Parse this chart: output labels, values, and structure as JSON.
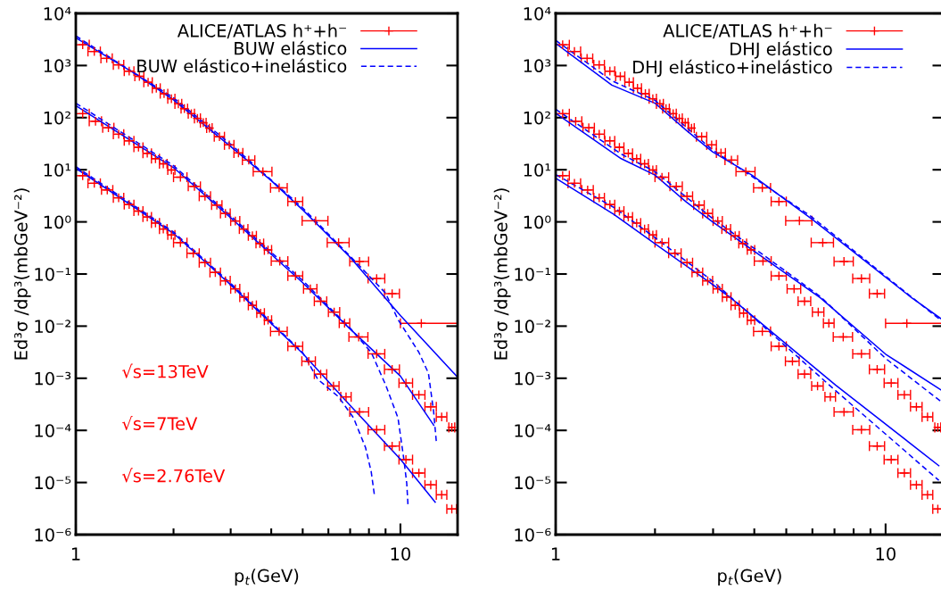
{
  "chart_data": [
    {
      "type": "scatter",
      "xlabel": "p$_{t}$(GeV)",
      "ylabel": "Ed³σ /dp³(mbGeV⁻²)",
      "log": "xy",
      "xlim": [
        1,
        15
      ],
      "ylim": [
        1e-06,
        10000.0
      ],
      "xticks": [
        1,
        {
          "value": 2,
          "label": null
        },
        {
          "value": 3,
          "label": null
        },
        {
          "value": 4,
          "label": null
        },
        {
          "value": 5,
          "label": null
        },
        {
          "value": 6,
          "label": null
        },
        {
          "value": 7,
          "label": null
        },
        {
          "value": 8,
          "label": null
        },
        {
          "value": 9,
          "label": null
        },
        10
      ],
      "yticks": [
        {
          "value": 1e-06,
          "label": "10⁻⁶"
        },
        {
          "value": 1e-05,
          "label": "10⁻⁵"
        },
        {
          "value": 0.0001,
          "label": "10⁻⁴"
        },
        {
          "value": 0.001,
          "label": "10⁻³"
        },
        {
          "value": 0.01,
          "label": "10⁻²"
        },
        {
          "value": 0.1,
          "label": "10⁻¹"
        },
        {
          "value": 1,
          "label": "10⁰"
        },
        {
          "value": 10,
          "label": "10¹"
        },
        {
          "value": 100,
          "label": "10²"
        },
        {
          "value": 1000,
          "label": "10³"
        },
        {
          "value": 10000,
          "label": "10⁴"
        }
      ],
      "legend": "top right",
      "annotations": [
        "√s=13TeV",
        "√s=7TeV",
        "√s=2.76TeV"
      ],
      "series": [
        {
          "name": "ALICE/ATLAS h⁺+h⁻",
          "marker": "cross",
          "color": "#ff0000",
          "x": [
            1.05,
            1.14,
            1.245,
            1.355,
            1.46,
            1.57,
            1.67,
            1.77,
            1.87,
            1.97,
            2.07,
            2.16,
            2.27,
            2.37,
            2.47,
            2.58,
            2.77,
            2.97,
            3.17,
            3.41,
            3.77,
            4.23,
            4.75,
            5.48,
            6.45,
            7.48,
            8.45,
            9.43,
            11.6
          ],
          "values": [
            2500,
            1860,
            1370,
            1030,
            780,
            620,
            477,
            366,
            288,
            230,
            184,
            149,
            119,
            97,
            80,
            63,
            43,
            30,
            21,
            15.3,
            9.2,
            4.5,
            2.46,
            1.05,
            0.4,
            0.174,
            0.082,
            0.042,
            0.0113
          ],
          "xerrors": [
            0.05,
            0.05,
            0.05,
            0.05,
            0.05,
            0.05,
            0.05,
            0.05,
            0.05,
            0.05,
            0.05,
            0.05,
            0.05,
            0.05,
            0.05,
            0.05,
            0.1,
            0.1,
            0.1,
            0.15,
            0.25,
            0.25,
            0.25,
            0.5,
            0.5,
            0.5,
            0.5,
            0.5,
            [
              10,
              15
            ]
          ]
        },
        {
          "marker": "cross",
          "color": "#ff0000",
          "x": [
            1.05,
            1.15,
            1.26,
            1.355,
            1.46,
            1.56,
            1.66,
            1.76,
            1.86,
            1.97,
            2.1,
            2.32,
            2.5,
            2.72,
            2.89,
            3.1,
            3.29,
            3.5,
            3.69,
            3.91,
            4.25,
            4.75,
            5.28,
            5.68,
            6.25,
            6.73,
            7.44,
            8.45,
            9.43,
            10.4,
            11.4,
            12.4,
            13.4,
            14.4
          ],
          "values": [
            119,
            85,
            64,
            48,
            36,
            27,
            20.7,
            16.3,
            13,
            9.9,
            7.2,
            4.8,
            3.1,
            2.1,
            1.45,
            1.04,
            0.73,
            0.54,
            0.385,
            0.29,
            0.177,
            0.092,
            0.052,
            0.03,
            0.0186,
            0.0114,
            0.0062,
            0.00294,
            0.00148,
            0.00081,
            0.00048,
            0.000283,
            0.000181,
            0.000114
          ],
          "xerrors": [
            0.05,
            0.05,
            0.05,
            0.05,
            0.05,
            0.05,
            0.05,
            0.05,
            0.05,
            0.05,
            0.1,
            0.1,
            0.1,
            0.1,
            0.1,
            0.1,
            0.1,
            0.1,
            0.1,
            0.1,
            0.25,
            0.25,
            0.25,
            0.25,
            0.25,
            0.25,
            0.5,
            0.5,
            0.5,
            0.5,
            0.5,
            0.5,
            0.5,
            0.3
          ]
        },
        {
          "marker": "cross",
          "color": "#ff0000",
          "x": [
            1.05,
            1.14,
            1.25,
            1.355,
            1.46,
            1.56,
            1.66,
            1.76,
            1.86,
            1.97,
            2.1,
            2.3,
            2.5,
            2.69,
            2.89,
            3.1,
            3.3,
            3.5,
            3.71,
            3.91,
            4.23,
            4.75,
            5.22,
            5.68,
            6.22,
            6.8,
            7.48,
            8.45,
            9.43,
            10.4,
            11.4,
            12.4,
            13.4,
            14.4
          ],
          "values": [
            7.7,
            5.5,
            4.1,
            2.9,
            2.15,
            1.61,
            1.24,
            0.95,
            0.73,
            0.56,
            0.4,
            0.25,
            0.165,
            0.107,
            0.074,
            0.052,
            0.036,
            0.025,
            0.0178,
            0.013,
            0.0079,
            0.0041,
            0.00212,
            0.0012,
            0.00071,
            0.00044,
            0.000226,
            0.000103,
            5e-05,
            2.75e-05,
            1.52e-05,
            9e-06,
            5.8e-06,
            3.1e-06
          ],
          "xerrors": [
            0.05,
            0.05,
            0.05,
            0.05,
            0.05,
            0.05,
            0.05,
            0.05,
            0.05,
            0.05,
            0.1,
            0.1,
            0.1,
            0.1,
            0.1,
            0.1,
            0.1,
            0.1,
            0.1,
            0.1,
            0.25,
            0.25,
            0.25,
            0.25,
            0.25,
            0.25,
            0.5,
            0.5,
            0.5,
            0.5,
            0.5,
            0.5,
            0.5,
            0.5
          ]
        },
        {
          "name": "BUW elástico",
          "type": "line",
          "line_style": "solid",
          "color": "#0000ff",
          "x": [
            1,
            1.5,
            2,
            3,
            4,
            5,
            7,
            10,
            15
          ],
          "values": [
            3400,
            740,
            220,
            28,
            6.2,
            1.7,
            0.21,
            0.016,
            0.00105
          ]
        },
        {
          "name": "BUW elástico+inelástico",
          "type": "line",
          "line_style": "dashed",
          "color": "#0000ff",
          "x": [
            1,
            2,
            3,
            5,
            7,
            9,
            9.83,
            11.4,
            12.2,
            12.66,
            12.9
          ],
          "values": [
            3700,
            240,
            31,
            1.85,
            0.22,
            0.043,
            0.0134,
            0.00314,
            0.00125,
            0.000226,
            6.1e-05
          ]
        },
        {
          "type": "line",
          "line_style": "solid",
          "color": "#0000ff",
          "x": [
            1,
            2,
            3,
            5,
            7,
            10,
            12.67
          ],
          "values": [
            170,
            11,
            1.2,
            0.068,
            0.0088,
            0.0011,
            0.000125
          ]
        },
        {
          "type": "line",
          "line_style": "dashed",
          "color": "#0000ff",
          "x": [
            1,
            2,
            3,
            5,
            7.02,
            8.13,
            9.01,
            9.83,
            10.25,
            10.46,
            10.56
          ],
          "values": [
            190,
            12,
            1.3,
            0.075,
            0.009,
            0.00314,
            0.00074,
            0.000174,
            2.75e-05,
            9.6e-06,
            3.36e-06
          ]
        },
        {
          "type": "line",
          "line_style": "solid",
          "color": "#0000ff",
          "x": [
            1,
            2,
            3,
            5,
            7,
            10,
            12.8
          ],
          "values": [
            10.7,
            0.6,
            0.062,
            0.003,
            0.0003,
            2.8e-05,
            4.2e-06
          ]
        },
        {
          "type": "line",
          "line_style": "dashed",
          "color": "#0000ff",
          "x": [
            1,
            2,
            3,
            5,
            5.56,
            6.45,
            7.17,
            7.81,
            8.13,
            8.33
          ],
          "values": [
            11.5,
            0.64,
            0.066,
            0.0031,
            0.00096,
            0.00044,
            0.000174,
            4.67e-05,
            1.6e-05,
            5.3e-06
          ]
        }
      ]
    },
    {
      "type": "scatter",
      "xlabel": "p$_{t}$(GeV)",
      "ylabel": "Ed³σ /dp³(mbGeV⁻²)",
      "log": "xy",
      "xlim": [
        1,
        15
      ],
      "ylim": [
        1e-06,
        10000.0
      ],
      "xticks": [
        1,
        {
          "value": 2,
          "label": null
        },
        {
          "value": 3,
          "label": null
        },
        {
          "value": 4,
          "label": null
        },
        {
          "value": 5,
          "label": null
        },
        {
          "value": 6,
          "label": null
        },
        {
          "value": 7,
          "label": null
        },
        {
          "value": 8,
          "label": null
        },
        {
          "value": 9,
          "label": null
        },
        10
      ],
      "yticks": [
        {
          "value": 1e-06,
          "label": "10⁻⁶"
        },
        {
          "value": 1e-05,
          "label": "10⁻⁵"
        },
        {
          "value": 0.0001,
          "label": "10⁻⁴"
        },
        {
          "value": 0.001,
          "label": "10⁻³"
        },
        {
          "value": 0.01,
          "label": "10⁻²"
        },
        {
          "value": 0.1,
          "label": "10⁻¹"
        },
        {
          "value": 1,
          "label": "10⁰"
        },
        {
          "value": 10,
          "label": "10¹"
        },
        {
          "value": 100,
          "label": "10²"
        },
        {
          "value": 1000,
          "label": "10³"
        },
        {
          "value": 10000,
          "label": "10⁴"
        }
      ],
      "legend": "top right",
      "series": [
        {
          "name": "ALICE/ATLAS h⁺+h⁻",
          "marker": "cross",
          "color": "#ff0000",
          "x": [
            1.05,
            1.14,
            1.245,
            1.355,
            1.46,
            1.57,
            1.67,
            1.77,
            1.87,
            1.97,
            2.07,
            2.16,
            2.27,
            2.37,
            2.47,
            2.58,
            2.77,
            2.97,
            3.17,
            3.41,
            3.77,
            4.23,
            4.75,
            5.48,
            6.45,
            7.48,
            8.45,
            9.43,
            11.6
          ],
          "values": [
            2500,
            1860,
            1370,
            1030,
            780,
            620,
            477,
            366,
            288,
            230,
            184,
            149,
            119,
            97,
            80,
            63,
            43,
            30,
            21,
            15.3,
            9.2,
            4.5,
            2.46,
            1.05,
            0.4,
            0.174,
            0.082,
            0.042,
            0.0113
          ],
          "xerrors": [
            0.05,
            0.05,
            0.05,
            0.05,
            0.05,
            0.05,
            0.05,
            0.05,
            0.05,
            0.05,
            0.05,
            0.05,
            0.05,
            0.05,
            0.05,
            0.05,
            0.1,
            0.1,
            0.1,
            0.15,
            0.25,
            0.25,
            0.25,
            0.5,
            0.5,
            0.5,
            0.5,
            0.5,
            [
              10,
              15
            ]
          ]
        },
        {
          "marker": "cross",
          "color": "#ff0000",
          "x": [
            1.05,
            1.15,
            1.26,
            1.355,
            1.46,
            1.56,
            1.66,
            1.76,
            1.86,
            1.97,
            2.1,
            2.32,
            2.5,
            2.72,
            2.89,
            3.1,
            3.29,
            3.5,
            3.69,
            3.91,
            4.25,
            4.75,
            5.28,
            5.68,
            6.25,
            6.73,
            7.44,
            8.45,
            9.43,
            10.4,
            11.4,
            12.4,
            13.4,
            14.4
          ],
          "values": [
            119,
            85,
            64,
            48,
            36,
            27,
            20.7,
            16.3,
            13,
            9.9,
            7.2,
            4.8,
            3.1,
            2.1,
            1.45,
            1.04,
            0.73,
            0.54,
            0.385,
            0.29,
            0.177,
            0.092,
            0.052,
            0.03,
            0.0186,
            0.0114,
            0.0062,
            0.00294,
            0.00148,
            0.00081,
            0.00048,
            0.000283,
            0.000181,
            0.000114
          ],
          "xerrors": [
            0.05,
            0.05,
            0.05,
            0.05,
            0.05,
            0.05,
            0.05,
            0.05,
            0.05,
            0.05,
            0.1,
            0.1,
            0.1,
            0.1,
            0.1,
            0.1,
            0.1,
            0.1,
            0.1,
            0.1,
            0.25,
            0.25,
            0.25,
            0.25,
            0.25,
            0.25,
            0.5,
            0.5,
            0.5,
            0.5,
            0.5,
            0.5,
            0.5,
            0.3
          ]
        },
        {
          "marker": "cross",
          "color": "#ff0000",
          "x": [
            1.05,
            1.14,
            1.25,
            1.355,
            1.46,
            1.56,
            1.66,
            1.76,
            1.86,
            1.97,
            2.1,
            2.3,
            2.5,
            2.69,
            2.89,
            3.1,
            3.3,
            3.5,
            3.71,
            3.91,
            4.23,
            4.75,
            5.22,
            5.68,
            6.22,
            6.8,
            7.48,
            8.45,
            9.43,
            10.4,
            11.4,
            12.4,
            13.4,
            14.4
          ],
          "values": [
            7.7,
            5.5,
            4.1,
            2.9,
            2.15,
            1.61,
            1.24,
            0.95,
            0.73,
            0.56,
            0.4,
            0.25,
            0.165,
            0.107,
            0.074,
            0.052,
            0.036,
            0.025,
            0.0178,
            0.013,
            0.0079,
            0.0041,
            0.00212,
            0.0012,
            0.00071,
            0.00044,
            0.000226,
            0.000103,
            5e-05,
            2.75e-05,
            1.52e-05,
            9e-06,
            5.8e-06,
            3.1e-06
          ],
          "xerrors": [
            0.05,
            0.05,
            0.05,
            0.05,
            0.05,
            0.05,
            0.05,
            0.05,
            0.05,
            0.05,
            0.1,
            0.1,
            0.1,
            0.1,
            0.1,
            0.1,
            0.1,
            0.1,
            0.1,
            0.1,
            0.25,
            0.25,
            0.25,
            0.25,
            0.25,
            0.25,
            0.5,
            0.5,
            0.5,
            0.5,
            0.5,
            0.5,
            0.5,
            0.5
          ]
        },
        {
          "name": "DHJ elástico",
          "type": "line",
          "line_style": "solid",
          "color": "#0000ff",
          "x": [
            1,
            1.48,
            2,
            2.49,
            2.99,
            3.93,
            5.95,
            12,
            14.7
          ],
          "values": [
            2660,
            420,
            189,
            57,
            22,
            7.9,
            1.16,
            0.035,
            0.014
          ]
        },
        {
          "name": "DHJ elástico+inelástico",
          "type": "line",
          "line_style": "dashed",
          "color": "#0000ff",
          "x": [
            1,
            1.48,
            2,
            2.99,
            5.95,
            12,
            14.7
          ],
          "values": [
            3040,
            510,
            215,
            24,
            1.27,
            0.036,
            0.013
          ]
        },
        {
          "type": "line",
          "line_style": "solid",
          "color": "#0000ff",
          "x": [
            1,
            1.58,
            2,
            2.49,
            2.99,
            4.45,
            6.34,
            10,
            14.7
          ],
          "values": [
            122,
            16.3,
            7.9,
            2.4,
            1.0,
            0.17,
            0.035,
            0.0029,
            0.0006
          ]
        },
        {
          "type": "line",
          "line_style": "dashed",
          "color": "#0000ff",
          "x": [
            1,
            1.58,
            2,
            2.99,
            4.45,
            6.34,
            10,
            14.7
          ],
          "values": [
            145,
            20,
            9.2,
            1.16,
            0.19,
            0.037,
            0.0024,
            0.00036
          ]
        },
        {
          "type": "line",
          "line_style": "solid",
          "color": "#0000ff",
          "x": [
            1,
            1.5,
            2,
            3,
            3.41,
            7.05,
            14.5
          ],
          "values": [
            6.9,
            1.4,
            0.38,
            0.062,
            0.034,
            0.00074,
            2.1e-05
          ]
        },
        {
          "type": "line",
          "line_style": "dashed",
          "color": "#0000ff",
          "x": [
            1,
            1.5,
            2,
            3,
            7.05,
            14.5
          ],
          "values": [
            8.1,
            1.9,
            0.5,
            0.072,
            0.00058,
            1.1e-05
          ]
        }
      ]
    }
  ]
}
